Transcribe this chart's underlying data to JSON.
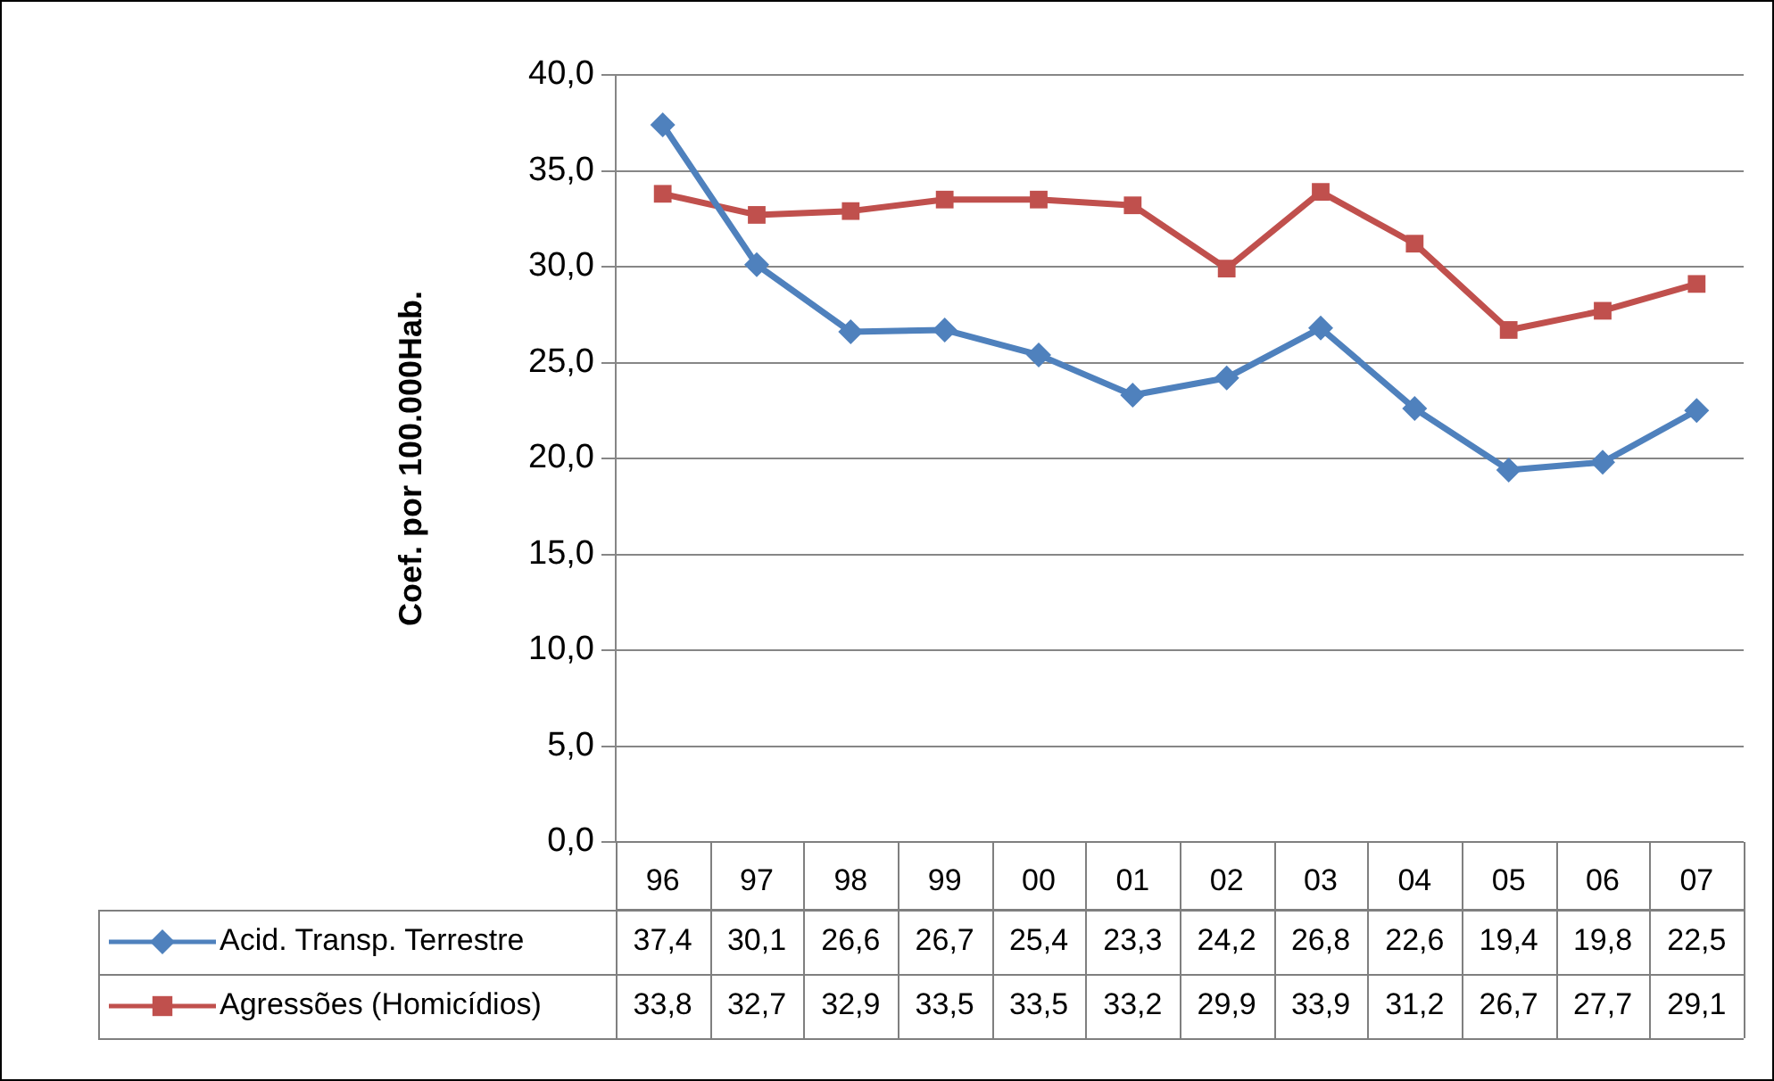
{
  "chart_data": {
    "type": "line",
    "ylabel": "Coef. por 100.000Hab.",
    "categories": [
      "96",
      "97",
      "98",
      "99",
      "00",
      "01",
      "02",
      "03",
      "04",
      "05",
      "06",
      "07"
    ],
    "series": [
      {
        "name": "Acid. Transp. Terrestre",
        "color": "#4f81bd",
        "marker": "diamond",
        "values": [
          37.4,
          30.1,
          26.6,
          26.7,
          25.4,
          23.3,
          24.2,
          26.8,
          22.6,
          19.4,
          19.8,
          22.5
        ],
        "value_labels": [
          "37,4",
          "30,1",
          "26,6",
          "26,7",
          "25,4",
          "23,3",
          "24,2",
          "26,8",
          "22,6",
          "19,4",
          "19,8",
          "22,5"
        ]
      },
      {
        "name": "Agressões (Homicídios)",
        "color": "#c0504d",
        "marker": "square",
        "values": [
          33.8,
          32.7,
          32.9,
          33.5,
          33.5,
          33.2,
          29.9,
          33.9,
          31.2,
          26.7,
          27.7,
          29.1
        ],
        "value_labels": [
          "33,8",
          "32,7",
          "32,9",
          "33,5",
          "33,5",
          "33,2",
          "29,9",
          "33,9",
          "31,2",
          "26,7",
          "27,7",
          "29,1"
        ]
      }
    ],
    "ylim": [
      0,
      40
    ],
    "yticks": [
      {
        "value": 0,
        "label": "0,0"
      },
      {
        "value": 5,
        "label": "5,0"
      },
      {
        "value": 10,
        "label": "10,0"
      },
      {
        "value": 15,
        "label": "15,0"
      },
      {
        "value": 20,
        "label": "20,0"
      },
      {
        "value": 25,
        "label": "25,0"
      },
      {
        "value": 30,
        "label": "30,0"
      },
      {
        "value": 35,
        "label": "35,0"
      },
      {
        "value": 40,
        "label": "40,0"
      }
    ],
    "grid": "y",
    "legend": "bottom left",
    "line_style": "solid"
  }
}
